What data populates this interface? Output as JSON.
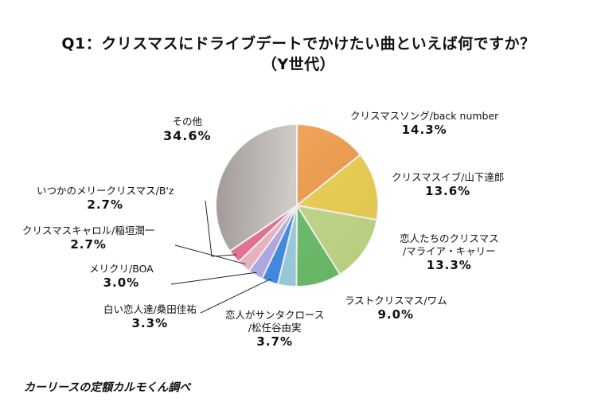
{
  "title": {
    "line1": "Q1：クリスマスにドライブデートでかけたい曲といえば何ですか？",
    "line2": "（Y世代）"
  },
  "source": "カーリースの定額カルモくん調べ",
  "chart_data": {
    "type": "pie",
    "title": "Q1：クリスマスにドライブデートでかけたい曲といえば何ですか？（Y世代）",
    "unit": "%",
    "slices": [
      {
        "label": "クリスマスソング/back number",
        "value": 14.3,
        "pct_text": "14.3%",
        "color": "#f9a14b"
      },
      {
        "label": "クリスマスイブ/山下達郎",
        "value": 13.6,
        "pct_text": "13.6%",
        "color": "#f6d651"
      },
      {
        "label": "恋人たちのクリスマス /マライア・キャリー",
        "label_lines": [
          "恋人たちのクリスマス",
          "/マライア・キャリー"
        ],
        "value": 13.3,
        "pct_text": "13.3%",
        "color": "#c8e08a"
      },
      {
        "label": "ラストクリスマス/ワム",
        "value": 9.0,
        "pct_text": "9.0%",
        "color": "#6cc46a"
      },
      {
        "label": "恋人がサンタクロース /松任谷由実",
        "label_lines": [
          "恋人がサンタクロース",
          "/松任谷由実"
        ],
        "value": 3.7,
        "pct_text": "3.7%",
        "color": "#9fd6e6"
      },
      {
        "label": "白い恋人達/桑田佳祐",
        "value": 3.3,
        "pct_text": "3.3%",
        "color": "#3f8df0"
      },
      {
        "label": "メリクリ/BOA",
        "value": 3.0,
        "pct_text": "3.0%",
        "color": "#b6b0ee"
      },
      {
        "label": "クリスマスキャロル/稲垣潤一",
        "value": 2.7,
        "pct_text": "2.7%",
        "color": "#f7b9c9"
      },
      {
        "label": "いつかのメリークリスマス/B'z",
        "value": 2.7,
        "pct_text": "2.7%",
        "color": "#ef6e92"
      },
      {
        "label": "その他",
        "value": 34.6,
        "pct_text": "34.6%",
        "color": "#b8b0aa"
      }
    ]
  }
}
